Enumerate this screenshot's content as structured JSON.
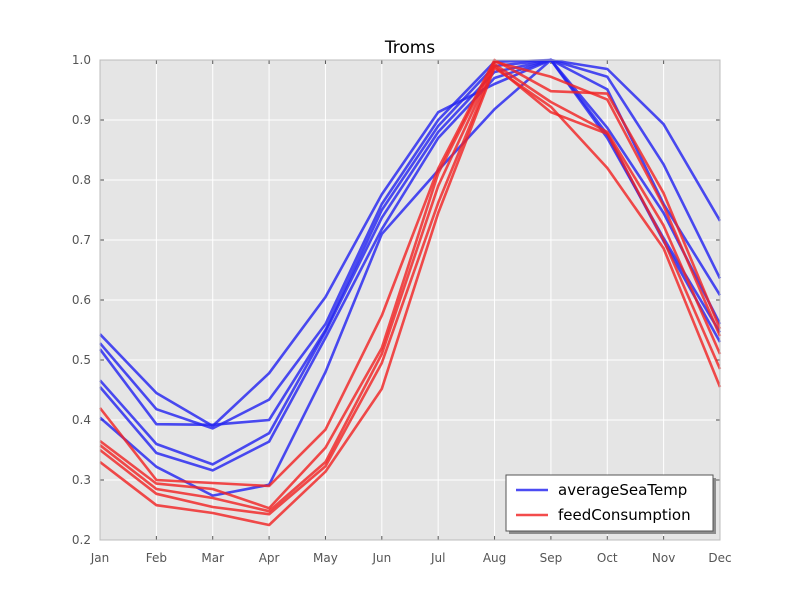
{
  "chart_data": {
    "type": "line",
    "title": "Troms",
    "categories": [
      "Jan",
      "Feb",
      "Mar",
      "Apr",
      "May",
      "Jun",
      "Jul",
      "Aug",
      "Sep",
      "Oct",
      "Nov",
      "Dec"
    ],
    "ylim": [
      0.2,
      1.0
    ],
    "yticks": [
      "0.2",
      "0.3",
      "0.4",
      "0.5",
      "0.6",
      "0.7",
      "0.8",
      "0.9",
      "1.0"
    ],
    "grid": true,
    "legend_position": "bottom-right",
    "colors": {
      "averageSeaTemp": "#2424f0",
      "feedConsumption": "#f02424",
      "background": "#e5e5e5",
      "grid": "#ffffff"
    },
    "series": [
      {
        "group": "averageSeaTemp",
        "values": [
          0.543,
          0.445,
          0.39,
          0.478,
          0.605,
          0.776,
          0.913,
          0.96,
          1.0,
          0.985,
          0.893,
          0.732
        ]
      },
      {
        "group": "averageSeaTemp",
        "values": [
          0.528,
          0.418,
          0.386,
          0.434,
          0.56,
          0.76,
          0.9,
          0.997,
          1.0,
          0.972,
          0.826,
          0.636
        ]
      },
      {
        "group": "averageSeaTemp",
        "values": [
          0.518,
          0.393,
          0.392,
          0.4,
          0.55,
          0.75,
          0.89,
          0.99,
          1.0,
          0.951,
          0.76,
          0.608
        ]
      },
      {
        "group": "averageSeaTemp",
        "values": [
          0.466,
          0.36,
          0.326,
          0.378,
          0.547,
          0.737,
          0.88,
          0.98,
          1.0,
          0.887,
          0.745,
          0.56
        ]
      },
      {
        "group": "averageSeaTemp",
        "values": [
          0.455,
          0.345,
          0.316,
          0.364,
          0.537,
          0.718,
          0.87,
          0.97,
          1.0,
          0.87,
          0.703,
          0.546
        ]
      },
      {
        "group": "averageSeaTemp",
        "values": [
          0.404,
          0.322,
          0.274,
          0.292,
          0.48,
          0.71,
          0.816,
          0.918,
          1.0,
          0.876,
          0.698,
          0.53
        ]
      },
      {
        "group": "feedConsumption",
        "values": [
          0.42,
          0.3,
          0.295,
          0.29,
          0.384,
          0.574,
          0.819,
          1.0,
          0.948,
          0.944,
          0.778,
          0.552
        ]
      },
      {
        "group": "feedConsumption",
        "values": [
          0.365,
          0.294,
          0.285,
          0.253,
          0.354,
          0.52,
          0.811,
          0.997,
          0.972,
          0.934,
          0.757,
          0.54
        ]
      },
      {
        "group": "feedConsumption",
        "values": [
          0.358,
          0.285,
          0.27,
          0.248,
          0.33,
          0.51,
          0.79,
          0.993,
          0.93,
          0.88,
          0.724,
          0.51
        ]
      },
      {
        "group": "feedConsumption",
        "values": [
          0.35,
          0.277,
          0.255,
          0.243,
          0.323,
          0.495,
          0.762,
          0.99,
          0.913,
          0.877,
          0.7,
          0.485
        ]
      },
      {
        "group": "feedConsumption",
        "values": [
          0.33,
          0.258,
          0.245,
          0.225,
          0.314,
          0.452,
          0.745,
          0.987,
          0.922,
          0.82,
          0.686,
          0.455
        ]
      }
    ],
    "legend": [
      {
        "label": "averageSeaTemp",
        "group": "averageSeaTemp"
      },
      {
        "label": "feedConsumption",
        "group": "feedConsumption"
      }
    ]
  }
}
